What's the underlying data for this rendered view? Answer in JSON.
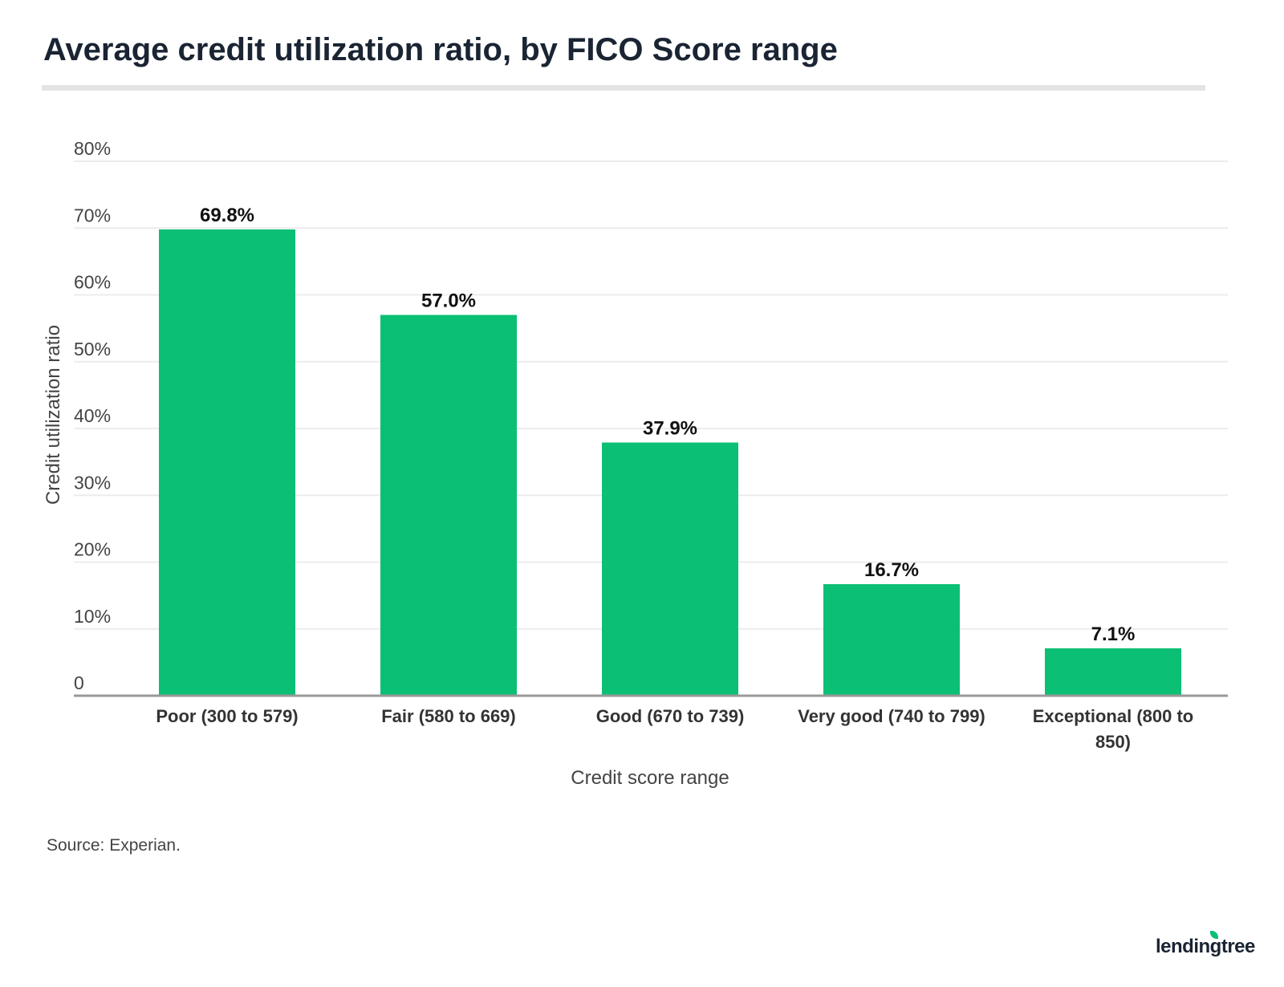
{
  "chart_data": {
    "type": "bar",
    "title": "Average credit utilization ratio, by FICO Score range",
    "xlabel": "Credit score range",
    "ylabel": "Credit utilization ratio",
    "categories": [
      "Poor (300 to 579)",
      "Fair (580 to 669)",
      "Good (670 to 739)",
      "Very good (740 to 799)",
      "Exceptional (800 to 850)"
    ],
    "values": [
      69.8,
      57.0,
      37.9,
      16.7,
      7.1
    ],
    "data_labels": [
      "69.8%",
      "57.0%",
      "37.9%",
      "16.7%",
      "7.1%"
    ],
    "ylim": [
      0,
      80
    ],
    "yticks": [
      0,
      10,
      20,
      30,
      40,
      50,
      60,
      70,
      80
    ],
    "ytick_labels": [
      "0",
      "10%",
      "20%",
      "30%",
      "40%",
      "50%",
      "60%",
      "70%",
      "80%"
    ],
    "grid": true,
    "bar_color": "#0bbf74"
  },
  "source": "Source: Experian.",
  "logo": "lendingtree"
}
